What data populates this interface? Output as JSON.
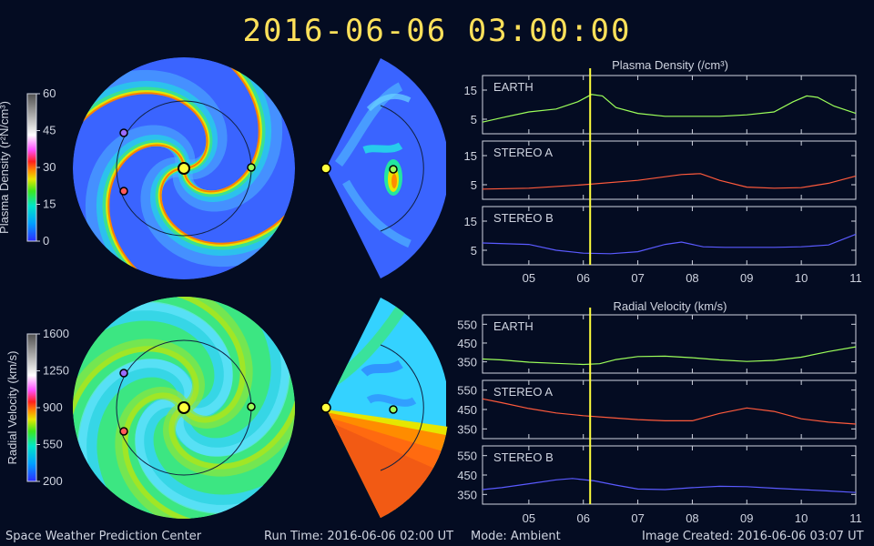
{
  "timestamp": "2016-06-06  03:00:00",
  "footer": {
    "left": "Space Weather Prediction Center",
    "run_time": "Run Time: 2016-06-06 02:00 UT",
    "mode": "Mode: Ambient",
    "created": "Image Created: 2016-06-06 03:07 UT"
  },
  "colors": {
    "background": "#040c22",
    "earth": "#9cff5a",
    "stereo_a": "#ff5a3c",
    "stereo_b": "#5a5aff",
    "current_time": "#ffff3c",
    "timestamp": "#ffe15a"
  },
  "maps": {
    "density": {
      "colorbar_label": "Plasma Density (r²N/cm³)",
      "colorbar_ticks": [
        "60",
        "45",
        "30",
        "15",
        "0"
      ],
      "range": [
        0,
        60
      ],
      "background_level": 0.18,
      "stream_level": 0.72
    },
    "velocity": {
      "colorbar_label": "Radial Velocity (km/s)",
      "colorbar_ticks": [
        "1600",
        "1250",
        "900",
        "550",
        "200"
      ],
      "range": [
        200,
        1600
      ],
      "background_level": 0.28,
      "stream_level": 0.18
    }
  },
  "chart_data": [
    {
      "type": "line",
      "title": "Plasma Density (/cm³)",
      "x_ticks": [
        "05",
        "06",
        "07",
        "08",
        "09",
        "10",
        "11"
      ],
      "xlim": [
        4.15,
        11.0
      ],
      "current_time": 6.125,
      "panels": [
        {
          "name": "EARTH",
          "color": "#9cff5a",
          "ylim": [
            0,
            20
          ],
          "yticks": [
            "15",
            "5"
          ],
          "ytick_values": [
            15,
            5
          ],
          "x": [
            4.15,
            4.5,
            5.0,
            5.5,
            5.9,
            6.15,
            6.35,
            6.6,
            7.0,
            7.5,
            8.0,
            8.5,
            9.0,
            9.5,
            9.85,
            10.1,
            10.3,
            10.6,
            11.0
          ],
          "y": [
            4,
            5.5,
            7.5,
            8.5,
            11,
            13.5,
            13,
            9,
            7,
            6,
            6,
            6,
            6.5,
            7.5,
            11,
            13,
            12.5,
            9.5,
            7
          ]
        },
        {
          "name": "STEREO A",
          "color": "#ff5a3c",
          "ylim": [
            0,
            20
          ],
          "yticks": [
            "15",
            "5"
          ],
          "ytick_values": [
            15,
            5
          ],
          "x": [
            4.15,
            5.0,
            6.0,
            7.0,
            7.8,
            8.15,
            8.5,
            9.0,
            9.5,
            10.0,
            10.5,
            11.0
          ],
          "y": [
            3.5,
            3.8,
            5,
            6.5,
            8.5,
            8.8,
            6.5,
            4.2,
            3.8,
            4,
            5.5,
            8
          ]
        },
        {
          "name": "STEREO B",
          "color": "#5a5aff",
          "ylim": [
            0,
            20
          ],
          "yticks": [
            "15",
            "5"
          ],
          "ytick_values": [
            15,
            5
          ],
          "x": [
            4.15,
            5.0,
            5.5,
            6.0,
            6.5,
            7.0,
            7.5,
            7.8,
            8.2,
            8.6,
            9.0,
            9.5,
            10.0,
            10.5,
            11.0
          ],
          "y": [
            7.5,
            7,
            5,
            4,
            3.8,
            4.5,
            7,
            7.8,
            6.2,
            6,
            6,
            6,
            6.2,
            6.8,
            10.5
          ]
        }
      ]
    },
    {
      "type": "line",
      "title": "Radial Velocity (km/s)",
      "x_ticks": [
        "05",
        "06",
        "07",
        "08",
        "09",
        "10",
        "11"
      ],
      "xlim": [
        4.15,
        11.0
      ],
      "current_time": 6.125,
      "panels": [
        {
          "name": "EARTH",
          "color": "#9cff5a",
          "ylim": [
            290,
            600
          ],
          "yticks": [
            "550",
            "450",
            "350"
          ],
          "ytick_values": [
            550,
            450,
            350
          ],
          "x": [
            4.15,
            4.5,
            5.0,
            5.5,
            6.0,
            6.3,
            6.6,
            7.0,
            7.5,
            8.0,
            8.5,
            9.0,
            9.5,
            10.0,
            10.5,
            11.0
          ],
          "y": [
            365,
            360,
            348,
            342,
            336,
            340,
            362,
            378,
            380,
            372,
            360,
            352,
            358,
            375,
            405,
            430
          ]
        },
        {
          "name": "STEREO A",
          "color": "#ff5a3c",
          "ylim": [
            300,
            600
          ],
          "yticks": [
            "550",
            "450",
            "350"
          ],
          "ytick_values": [
            550,
            450,
            350
          ],
          "x": [
            4.15,
            4.5,
            5.0,
            5.5,
            6.0,
            6.5,
            7.0,
            7.5,
            8.0,
            8.5,
            9.0,
            9.5,
            10.0,
            10.5,
            11.0
          ],
          "y": [
            505,
            485,
            455,
            432,
            418,
            408,
            398,
            392,
            392,
            430,
            458,
            440,
            402,
            385,
            375
          ]
        },
        {
          "name": "STEREO B",
          "color": "#5a5aff",
          "ylim": [
            300,
            600
          ],
          "yticks": [
            "550",
            "450",
            "350"
          ],
          "ytick_values": [
            550,
            450,
            350
          ],
          "x": [
            4.15,
            4.5,
            5.0,
            5.5,
            5.8,
            6.2,
            6.6,
            7.0,
            7.5,
            8.0,
            8.5,
            9.0,
            9.5,
            10.0,
            10.5,
            11.0
          ],
          "y": [
            375,
            385,
            405,
            425,
            432,
            420,
            398,
            378,
            375,
            385,
            392,
            390,
            382,
            375,
            368,
            360
          ]
        }
      ]
    }
  ]
}
